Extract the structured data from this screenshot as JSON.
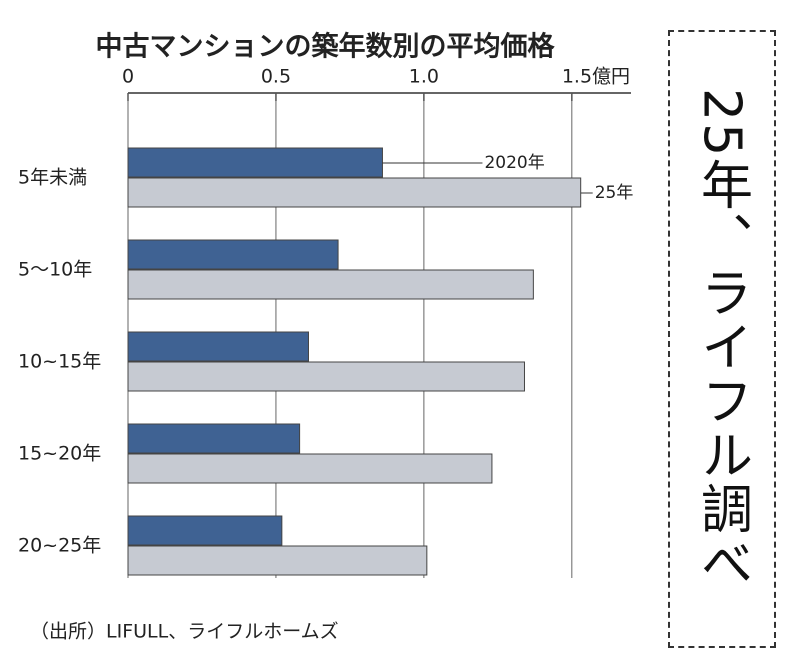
{
  "chart_data": {
    "type": "hbar",
    "title": "中古マンションの築年数別の平均価格",
    "categories": [
      "5年未満",
      "5～10年",
      "10~15年",
      "15~20年",
      "20~25年"
    ],
    "series": [
      {
        "name": "2020年",
        "color": "#3f6293",
        "values": [
          0.86,
          0.71,
          0.61,
          0.58,
          0.52
        ]
      },
      {
        "name": "25年",
        "color": "#c6cad2",
        "values": [
          1.53,
          1.37,
          1.34,
          1.23,
          1.01
        ]
      }
    ],
    "xlim": [
      0,
      1.7
    ],
    "xticks": [
      0,
      0.5,
      {
        "value": 1,
        "label": "1.0"
      },
      {
        "value": 1.5,
        "label": "1.5億円"
      }
    ],
    "grid": true,
    "source": "（出所）LIFULL、ライフルホームズ"
  },
  "side_note": "25年、ライフル調べ"
}
